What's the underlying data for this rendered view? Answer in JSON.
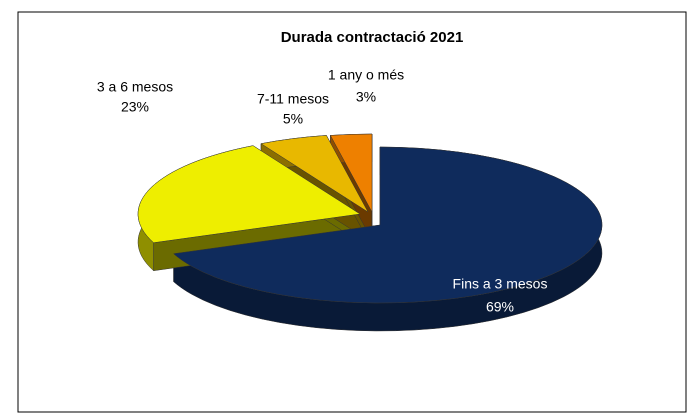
{
  "chart_data": {
    "type": "pie",
    "title": "Durada contractació 2021",
    "categories": [
      "Fins a 3 mesos",
      "3 a 6 mesos",
      "7-11 mesos",
      "1 any o més"
    ],
    "values": [
      69,
      23,
      5,
      3
    ],
    "value_labels": [
      "69%",
      "23%",
      "5%",
      "3%"
    ],
    "colors": [
      "#0f2b5c",
      "#eeee00",
      "#e8b800",
      "#ee8000"
    ]
  }
}
